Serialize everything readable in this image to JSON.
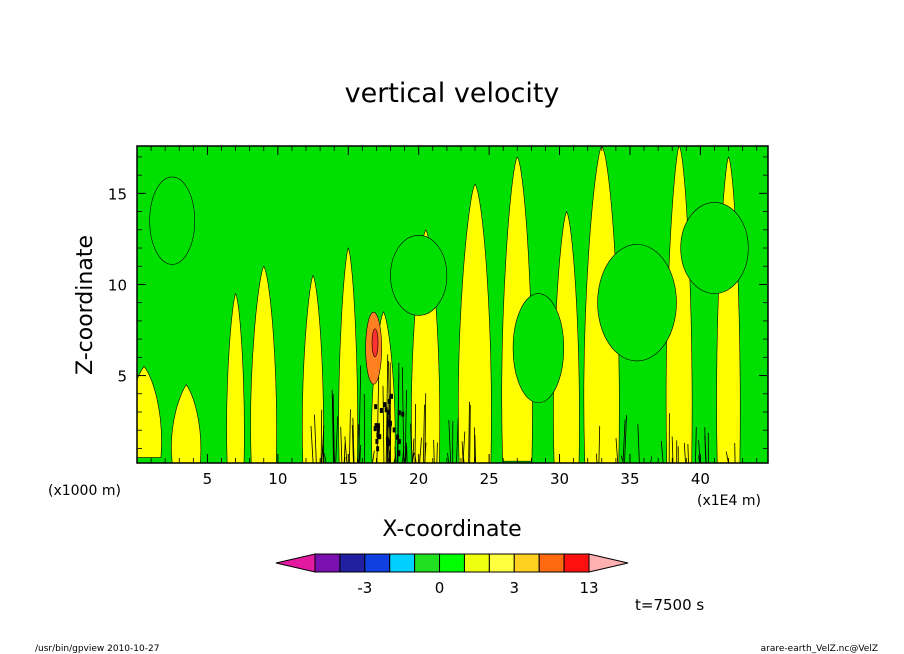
{
  "chart_data": {
    "type": "heatmap",
    "title": "vertical velocity",
    "xlabel": "X-coordinate",
    "ylabel": "Z-coordinate",
    "x_unit_label": "(x1000 m)",
    "x_scale_label": "(x1E4 m)",
    "xlim": [
      0,
      44.8
    ],
    "ylim": [
      0.2,
      17.6
    ],
    "x_ticks": [
      "5",
      "10",
      "15",
      "20",
      "25",
      "30",
      "35",
      "40"
    ],
    "y_ticks": [
      "5",
      "10",
      "15"
    ],
    "x_tick_values": [
      5,
      10,
      15,
      20,
      25,
      30,
      35,
      40
    ],
    "y_tick_values": [
      5,
      10,
      15
    ],
    "colorbar": {
      "tick_labels": [
        "-3",
        "0",
        "3",
        "13"
      ],
      "tick_levels": [
        -3,
        0,
        3,
        13
      ],
      "levels": [
        -5,
        -4,
        -3,
        -2,
        -1,
        0,
        1,
        2,
        3,
        7,
        11,
        13
      ],
      "colors": [
        "#e31aa0",
        "#7a10b0",
        "#2020a0",
        "#1040e0",
        "#00d0ff",
        "#20e020",
        "#00ff00",
        "#f0ff10",
        "#ffff40",
        "#ffd020",
        "#ff6a10",
        "#ff1010",
        "#ff7878",
        "#ffb0b0"
      ]
    },
    "field_colors": {
      "negative_weak": "#00e000",
      "positive_weak": "#ffff00",
      "positive_mid": "#ff8020",
      "positive_strong": "#ff3030"
    },
    "time_label": "t=7500 s",
    "footer_left": "/usr/bin/gpview   2010-10-27",
    "footer_right": "arare-earth_VelZ.nc@VelZ"
  }
}
